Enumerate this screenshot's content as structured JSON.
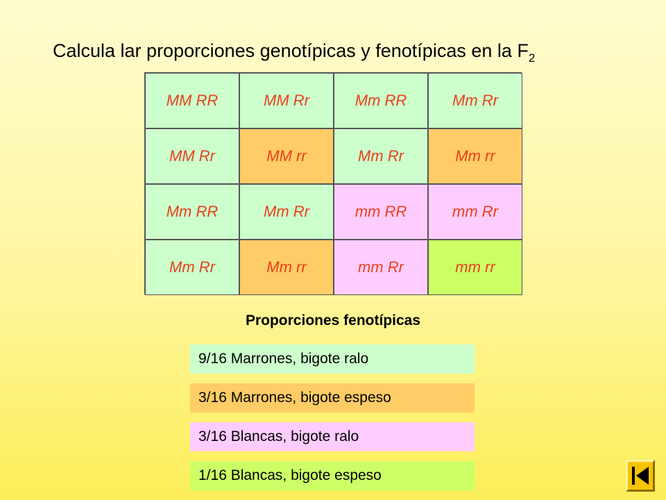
{
  "title": {
    "text": "Calcula lar proporciones genotípicas y fenotípicas en la F",
    "subscript": "2"
  },
  "grid": {
    "rows": [
      [
        {
          "text": "MM RR",
          "fill": "#ccffcc"
        },
        {
          "text": "MM Rr",
          "fill": "#ccffcc"
        },
        {
          "text": "Mm RR",
          "fill": "#ccffcc"
        },
        {
          "text": "Mm Rr",
          "fill": "#ccffcc"
        }
      ],
      [
        {
          "text": "MM Rr",
          "fill": "#ccffcc"
        },
        {
          "text": "MM rr",
          "fill": "#ffcc66"
        },
        {
          "text": "Mm Rr",
          "fill": "#ccffcc"
        },
        {
          "text": "Mm rr",
          "fill": "#ffcc66"
        }
      ],
      [
        {
          "text": "Mm RR",
          "fill": "#ccffcc"
        },
        {
          "text": "Mm Rr",
          "fill": "#ccffcc"
        },
        {
          "text": "mm RR",
          "fill": "#ffccff"
        },
        {
          "text": "mm Rr",
          "fill": "#ffccff"
        }
      ],
      [
        {
          "text": "Mm Rr",
          "fill": "#ccffcc"
        },
        {
          "text": "Mm rr",
          "fill": "#ffcc66"
        },
        {
          "text": "mm Rr",
          "fill": "#ffccff"
        },
        {
          "text": "mm rr",
          "fill": "#ccff66"
        }
      ]
    ]
  },
  "phenotypes": {
    "heading": "Proporciones fenotípicas",
    "items": [
      {
        "label": "9/16 Marrones, bigote ralo",
        "fill": "#ccffcc"
      },
      {
        "label": "3/16 Marrones, bigote espeso",
        "fill": "#ffcc66"
      },
      {
        "label": "3/16 Blancas, bigote ralo",
        "fill": "#ffccff"
      },
      {
        "label": "1/16 Blancas, bigote espeso",
        "fill": "#ccff66"
      }
    ]
  },
  "nav": {
    "icon": "skip-to-start-icon"
  },
  "colors": {
    "genotype_text": "#e8401c",
    "background_top": "#fffcd0",
    "background_bottom": "#fcee58",
    "nav_button": "#f8c400"
  }
}
